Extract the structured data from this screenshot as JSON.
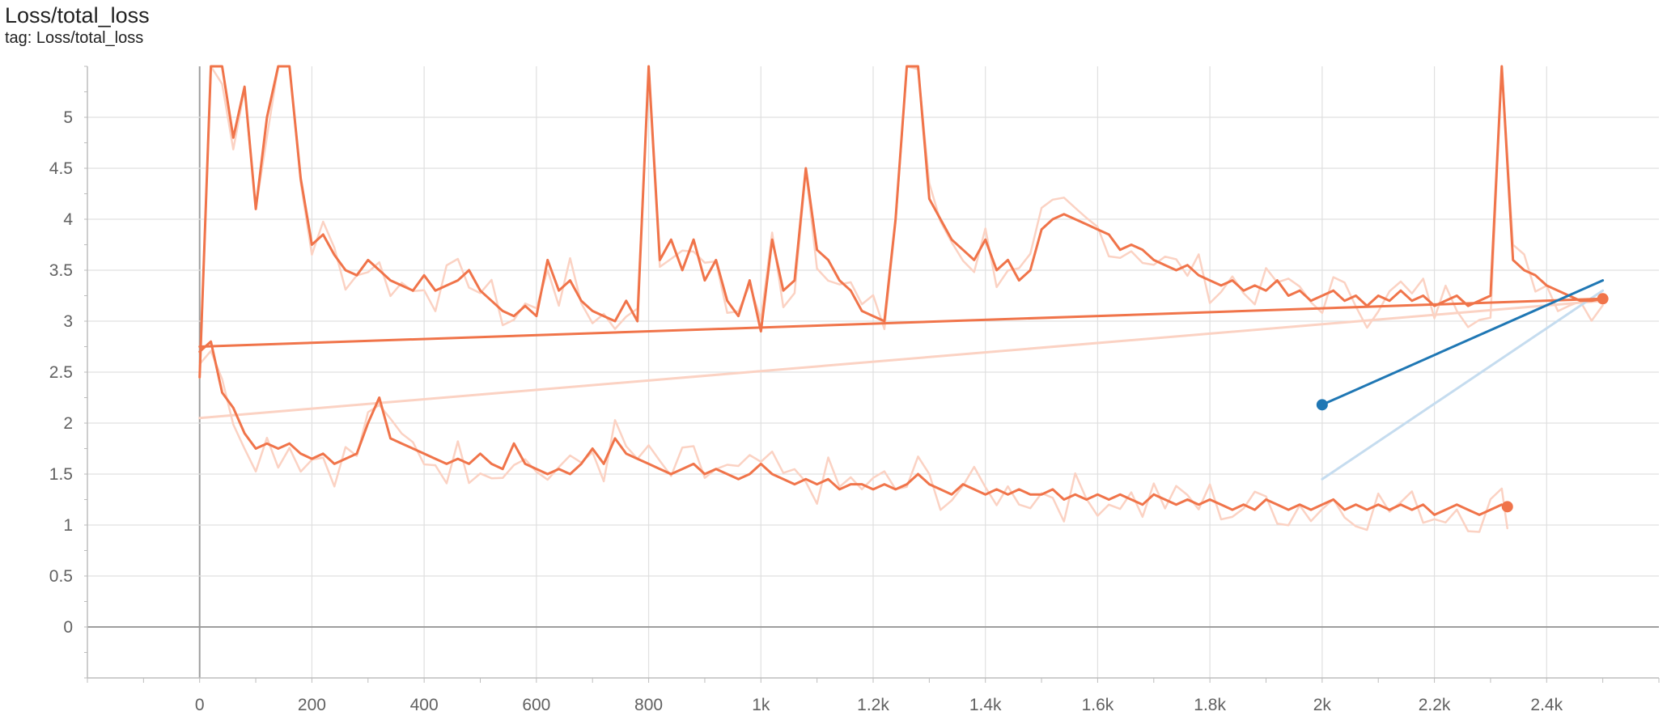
{
  "header": {
    "title": "Loss/total_loss",
    "tag": "tag: Loss/total_loss"
  },
  "chart_data": {
    "type": "line",
    "title": "Loss/total_loss",
    "subtitle": "tag: Loss/total_loss",
    "xlabel": "",
    "ylabel": "",
    "xlim": [
      -200,
      2600
    ],
    "ylim": [
      -0.5,
      5.5
    ],
    "grid": true,
    "legend": "none",
    "x_ticks": [
      {
        "value": 0,
        "label": "0"
      },
      {
        "value": 200,
        "label": "200"
      },
      {
        "value": 400,
        "label": "400"
      },
      {
        "value": 600,
        "label": "600"
      },
      {
        "value": 800,
        "label": "800"
      },
      {
        "value": 1000,
        "label": "1k"
      },
      {
        "value": 1200,
        "label": "1.2k"
      },
      {
        "value": 1400,
        "label": "1.4k"
      },
      {
        "value": 1600,
        "label": "1.6k"
      },
      {
        "value": 1800,
        "label": "1.8k"
      },
      {
        "value": 2000,
        "label": "2k"
      },
      {
        "value": 2200,
        "label": "2.2k"
      },
      {
        "value": 2400,
        "label": "2.4k"
      }
    ],
    "y_ticks": [
      {
        "value": 0,
        "label": "0"
      },
      {
        "value": 0.5,
        "label": "0.5"
      },
      {
        "value": 1,
        "label": "1"
      },
      {
        "value": 1.5,
        "label": "1.5"
      },
      {
        "value": 2,
        "label": "2"
      },
      {
        "value": 2.5,
        "label": "2.5"
      },
      {
        "value": 3,
        "label": "3"
      },
      {
        "value": 3.5,
        "label": "3.5"
      },
      {
        "value": 4,
        "label": "4"
      },
      {
        "value": 4.5,
        "label": "4.5"
      },
      {
        "value": 5,
        "label": "5"
      }
    ],
    "series": [
      {
        "color": "#f0744a",
        "raw_color": "#fbd2c3",
        "x": [
          0,
          20,
          40,
          60,
          80,
          100,
          120,
          140,
          160,
          180,
          200,
          220,
          240,
          260,
          280,
          300,
          320,
          340,
          360,
          380,
          400,
          420,
          440,
          460,
          480,
          500,
          520,
          540,
          560,
          580,
          600,
          620,
          640,
          660,
          680,
          700,
          720,
          740,
          760,
          780,
          800,
          820,
          840,
          860,
          880,
          900,
          920,
          940,
          960,
          980,
          1000,
          1020,
          1040,
          1060,
          1080,
          1100,
          1120,
          1140,
          1160,
          1180,
          1200,
          1220,
          1240,
          1260,
          1280,
          1300,
          1320,
          1340,
          1360,
          1380,
          1400,
          1420,
          1440,
          1460,
          1480,
          1500,
          1520,
          1540,
          1560,
          1580,
          1600,
          1620,
          1640,
          1660,
          1680,
          1700,
          1720,
          1740,
          1760,
          1780,
          1800,
          1820,
          1840,
          1860,
          1880,
          1900,
          1920,
          1940,
          1960,
          1980,
          2000,
          2020,
          2040,
          2060,
          2080,
          2100,
          2120,
          2140,
          2160,
          2180,
          2200,
          2220,
          2240,
          2260,
          2280,
          2300,
          2320,
          2340,
          2360,
          2380,
          2400,
          2420,
          2440,
          2460,
          2480,
          2500
        ],
        "y": [
          2.45,
          5.5,
          5.5,
          4.8,
          5.3,
          4.1,
          5.0,
          5.5,
          5.5,
          4.4,
          3.75,
          3.85,
          3.65,
          3.5,
          3.45,
          3.6,
          3.5,
          3.4,
          3.35,
          3.3,
          3.45,
          3.3,
          3.35,
          3.4,
          3.5,
          3.3,
          3.2,
          3.1,
          3.05,
          3.15,
          3.05,
          3.6,
          3.3,
          3.4,
          3.2,
          3.1,
          3.05,
          3.0,
          3.2,
          3.0,
          5.5,
          3.6,
          3.8,
          3.5,
          3.8,
          3.4,
          3.6,
          3.2,
          3.05,
          3.4,
          2.9,
          3.8,
          3.3,
          3.4,
          4.5,
          3.7,
          3.6,
          3.4,
          3.3,
          3.1,
          3.05,
          3.0,
          4.0,
          5.5,
          5.5,
          4.2,
          4.0,
          3.8,
          3.7,
          3.6,
          3.8,
          3.5,
          3.6,
          3.4,
          3.5,
          3.9,
          4.0,
          4.05,
          4.0,
          3.95,
          3.9,
          3.85,
          3.7,
          3.75,
          3.7,
          3.6,
          3.55,
          3.5,
          3.55,
          3.45,
          3.4,
          3.35,
          3.4,
          3.3,
          3.35,
          3.3,
          3.4,
          3.25,
          3.3,
          3.2,
          3.25,
          3.3,
          3.2,
          3.25,
          3.15,
          3.25,
          3.2,
          3.3,
          3.2,
          3.25,
          3.15,
          3.2,
          3.25,
          3.15,
          3.2,
          3.25,
          5.5,
          3.6,
          3.5,
          3.45,
          3.35,
          3.3,
          3.25,
          3.2,
          3.2,
          3.22
        ],
        "dot_x": 2500,
        "dot_y": 3.22
      },
      {
        "color": "#f0744a",
        "raw_color": "#fbd2c3",
        "x": [
          0,
          20,
          40,
          60,
          80,
          100,
          120,
          140,
          160,
          180,
          200,
          220,
          240,
          260,
          280,
          300,
          320,
          340,
          360,
          380,
          400,
          420,
          440,
          460,
          480,
          500,
          520,
          540,
          560,
          580,
          600,
          620,
          640,
          660,
          680,
          700,
          720,
          740,
          760,
          780,
          800,
          820,
          840,
          860,
          880,
          900,
          920,
          940,
          960,
          980,
          1000,
          1020,
          1040,
          1060,
          1080,
          1100,
          1120,
          1140,
          1160,
          1180,
          1200,
          1220,
          1240,
          1260,
          1280,
          1300,
          1320,
          1340,
          1360,
          1380,
          1400,
          1420,
          1440,
          1460,
          1480,
          1500,
          1520,
          1540,
          1560,
          1580,
          1600,
          1620,
          1640,
          1660,
          1680,
          1700,
          1720,
          1740,
          1760,
          1780,
          1800,
          1820,
          1840,
          1860,
          1880,
          1900,
          1920,
          1940,
          1960,
          1980,
          2000,
          2020,
          2040,
          2060,
          2080,
          2100,
          2120,
          2140,
          2160,
          2180,
          2200,
          2220,
          2240,
          2260,
          2280,
          2300,
          2320,
          2330
        ],
        "y": [
          2.7,
          2.8,
          2.3,
          2.15,
          1.9,
          1.75,
          1.8,
          1.75,
          1.8,
          1.7,
          1.65,
          1.7,
          1.6,
          1.65,
          1.7,
          2.0,
          2.25,
          1.85,
          1.8,
          1.75,
          1.7,
          1.65,
          1.6,
          1.65,
          1.6,
          1.7,
          1.6,
          1.55,
          1.8,
          1.6,
          1.55,
          1.5,
          1.55,
          1.5,
          1.6,
          1.75,
          1.6,
          1.85,
          1.7,
          1.65,
          1.6,
          1.55,
          1.5,
          1.55,
          1.6,
          1.5,
          1.55,
          1.5,
          1.45,
          1.5,
          1.6,
          1.5,
          1.45,
          1.4,
          1.45,
          1.4,
          1.45,
          1.35,
          1.4,
          1.4,
          1.35,
          1.4,
          1.35,
          1.4,
          1.5,
          1.4,
          1.35,
          1.3,
          1.4,
          1.35,
          1.3,
          1.35,
          1.3,
          1.35,
          1.3,
          1.3,
          1.35,
          1.25,
          1.3,
          1.25,
          1.3,
          1.25,
          1.3,
          1.25,
          1.2,
          1.3,
          1.25,
          1.2,
          1.25,
          1.2,
          1.25,
          1.2,
          1.15,
          1.2,
          1.15,
          1.25,
          1.2,
          1.15,
          1.2,
          1.15,
          1.2,
          1.25,
          1.15,
          1.2,
          1.15,
          1.2,
          1.15,
          1.2,
          1.15,
          1.2,
          1.1,
          1.15,
          1.2,
          1.15,
          1.1,
          1.15,
          1.2,
          1.18
        ],
        "dot_x": 2330,
        "dot_y": 1.18
      },
      {
        "color": "#1f77b4",
        "raw_color": "#c5dcef",
        "x": [
          2000,
          2500
        ],
        "y": [
          2.18,
          3.4
        ],
        "raw_y": [
          1.45,
          3.3
        ],
        "dot_x": 2000,
        "dot_y": 2.18
      }
    ],
    "connectors": [
      {
        "color": "#f0744a",
        "x": [
          0,
          2500
        ],
        "y": [
          2.75,
          3.22
        ]
      },
      {
        "color": "#fbd2c3",
        "x": [
          0,
          2500
        ],
        "y": [
          2.05,
          3.2
        ]
      }
    ]
  }
}
